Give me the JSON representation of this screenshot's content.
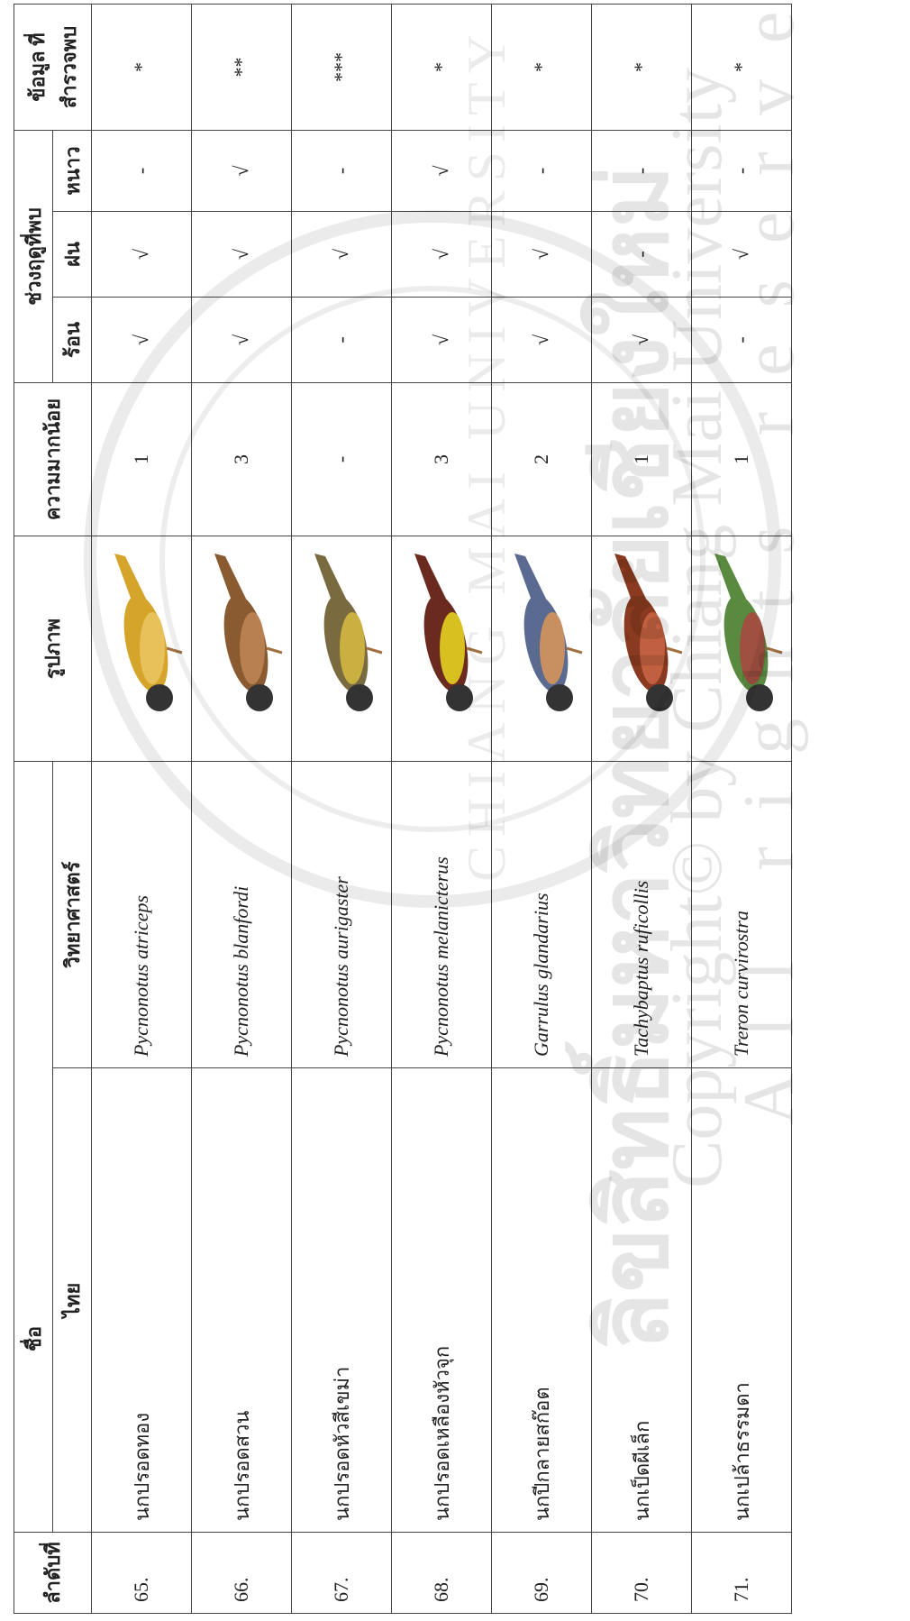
{
  "header": {
    "no": "ลำดับที่",
    "name": "ชื่อ",
    "thai": "ไทย",
    "sci": "วิทยาศาสตร์",
    "image": "รูปภาพ",
    "abundance": "ความมากน้อย",
    "season": "ช่วงฤดูที่พบ",
    "hot": "ร้อน",
    "rain": "ฝน",
    "cool": "หนาว",
    "info": "ข้อมูล ที่สำรวจพบ"
  },
  "table": {
    "rows": [
      [
        "65.",
        "นกปรอดทอง",
        "Pycnonotus atriceps",
        "1",
        "√",
        "√",
        "-",
        "*"
      ],
      [
        "66.",
        "นกปรอดสวน",
        "Pycnonotus blanfordi",
        "3",
        "√",
        "√",
        "√",
        "**"
      ],
      [
        "67.",
        "นกปรอดหัวสีเขม่า",
        "Pycnonotus aurigaster",
        "-",
        "-",
        "√",
        "-",
        "***"
      ],
      [
        "68.",
        "นกปรอดเหลืองหัวจุก",
        "Pycnonotus melanicterus",
        "3",
        "√",
        "√",
        "√",
        "*"
      ],
      [
        "69.",
        "นกปีกลายสก๊อต",
        "Garrulus glandarius",
        "2",
        "√",
        "√",
        "-",
        "*"
      ],
      [
        "70.",
        "นกเป็ดผีเล็ก",
        "Tachybaptus ruficollis",
        "1",
        "√",
        "-",
        "-",
        "*"
      ],
      [
        "71.",
        "นกเปล้าธรรมดา",
        "Treron curvirostra",
        "1",
        "-",
        "√",
        "-",
        "*"
      ]
    ]
  },
  "watermark": {
    "line1": "ลิขสิทธิ์มหาวิทยาลัยเชียงใหม่",
    "line2": "Copyright© by Chiang Mai University",
    "line3": "All rights reserved",
    "seal": "CHIANG MAI UNIVERSITY"
  }
}
